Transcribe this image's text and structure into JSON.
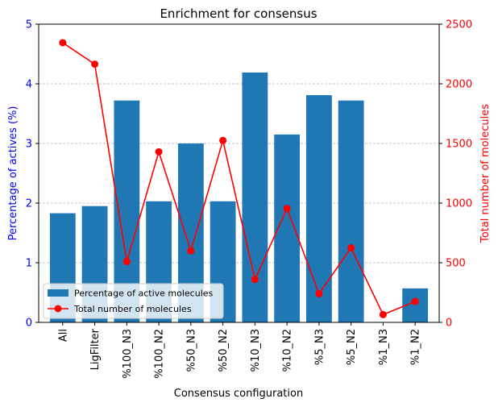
{
  "chart_data": {
    "type": "bar",
    "title": "Enrichment for consensus",
    "xlabel": "Consensus configuration",
    "ylabel": "Percentage of actives (%)",
    "y2label": "Total number of molecules",
    "categories": [
      "All",
      "LigFilter",
      "%100_N3",
      "%100_N2",
      "%50_N3",
      "%50_N2",
      "%10_N3",
      "%10_N2",
      "%5_N3",
      "%5_N2",
      "%1_N3",
      "%1_N2"
    ],
    "ylim": [
      0,
      5
    ],
    "y2lim": [
      0,
      2500
    ],
    "yticks": [
      "0",
      "1",
      "2",
      "3",
      "4",
      "5"
    ],
    "y2ticks": [
      "0",
      "500",
      "1000",
      "1500",
      "2000",
      "2500"
    ],
    "grid": "horizontal dashed",
    "legend_position": "lower-left",
    "series": [
      {
        "name": "Percentage of active molecules",
        "kind": "bar",
        "axis": "left",
        "color": "#1f77b4",
        "values": [
          1.83,
          1.95,
          3.72,
          2.03,
          3.0,
          2.03,
          4.19,
          3.15,
          3.81,
          3.72,
          0,
          0.57
        ]
      },
      {
        "name": "Total number of molecules",
        "kind": "line",
        "axis": "right",
        "color": "#ff0000",
        "values": [
          2345,
          2165,
          510,
          1430,
          600,
          1525,
          360,
          955,
          240,
          625,
          65,
          175
        ]
      }
    ],
    "colors": {
      "left_axis": "#0000ff",
      "right_axis": "#ff0000",
      "grid": "#b0b0b0"
    }
  }
}
